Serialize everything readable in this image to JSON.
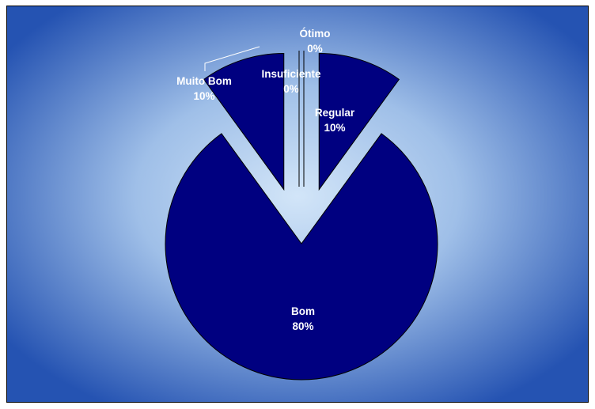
{
  "chart_data": {
    "type": "pie",
    "title": "",
    "slices": [
      {
        "category": "Ótimo",
        "value": 0,
        "label": "0%"
      },
      {
        "category": "Regular",
        "value": 10,
        "label": "10%"
      },
      {
        "category": "Bom",
        "value": 80,
        "label": "80%"
      },
      {
        "category": "Muito Bom",
        "value": 10,
        "label": "10%"
      },
      {
        "category": "Insuficiente",
        "value": 0,
        "label": "0%"
      }
    ],
    "slice_color": "#000080",
    "background_colors": [
      "#cfe3f7",
      "#2a56b5"
    ],
    "exploded": true,
    "legend": "none",
    "data_labels": "category and percent"
  }
}
